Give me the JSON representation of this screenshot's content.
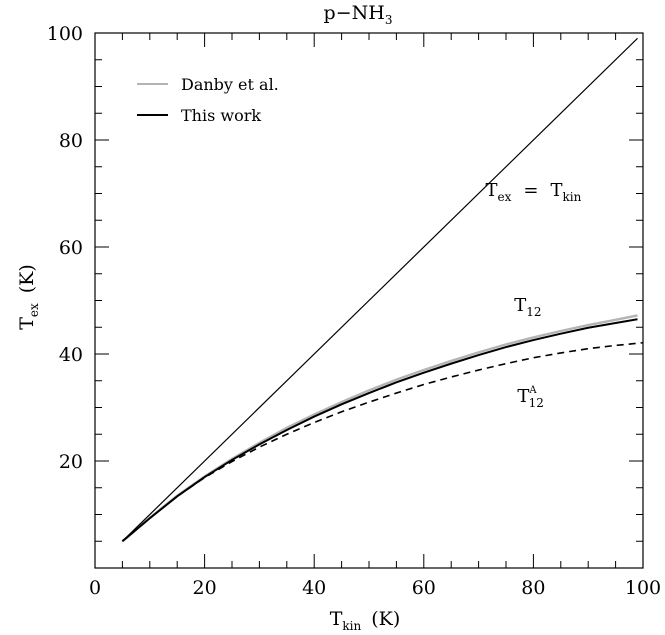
{
  "chart_data": {
    "type": "line",
    "title": "p−NH3",
    "title_main": "p−NH",
    "title_sub": "3",
    "xlabel_main": "T",
    "xlabel_sub": "kin",
    "xlabel_unit": "(K)",
    "ylabel_main": "T",
    "ylabel_sub": "ex",
    "ylabel_unit": "(K)",
    "xlim": [
      0,
      100
    ],
    "ylim": [
      0,
      100
    ],
    "x_ticks": [
      0,
      20,
      40,
      60,
      80,
      100
    ],
    "y_ticks": [
      20,
      40,
      60,
      80,
      100
    ],
    "x_tick_labels": [
      "0",
      "20",
      "40",
      "60",
      "80",
      "100"
    ],
    "y_tick_labels": [
      "20",
      "40",
      "60",
      "80",
      "100"
    ],
    "grid": false,
    "legend_position": "top-left",
    "series": [
      {
        "name": "Danby et al.",
        "color": "#b4b4b4",
        "style": "solid",
        "x": [
          5,
          10,
          15,
          20,
          25,
          30,
          35,
          40,
          45,
          50,
          55,
          60,
          65,
          70,
          75,
          80,
          85,
          90,
          95,
          99
        ],
        "y": [
          5.0,
          9.4,
          13.5,
          17.1,
          20.4,
          23.4,
          26.2,
          28.7,
          31.0,
          33.2,
          35.2,
          37.0,
          38.7,
          40.3,
          41.8,
          43.1,
          44.3,
          45.4,
          46.4,
          47.2
        ]
      },
      {
        "name": "This work",
        "color": "#000000",
        "style": "solid",
        "x": [
          5,
          10,
          15,
          20,
          25,
          30,
          35,
          40,
          45,
          50,
          55,
          60,
          65,
          70,
          75,
          80,
          85,
          90,
          95,
          99
        ],
        "y": [
          5.0,
          9.3,
          13.4,
          17.0,
          20.2,
          23.1,
          25.8,
          28.3,
          30.6,
          32.7,
          34.7,
          36.5,
          38.2,
          39.8,
          41.3,
          42.6,
          43.8,
          44.9,
          45.8,
          46.5
        ]
      },
      {
        "name": "",
        "color": "#000000",
        "style": "dashed",
        "x": [
          5,
          10,
          15,
          20,
          25,
          30,
          35,
          40,
          45,
          50,
          55,
          60,
          65,
          70,
          75,
          80,
          85,
          90,
          95,
          100
        ],
        "y": [
          5.0,
          9.3,
          13.4,
          16.9,
          19.9,
          22.6,
          25.0,
          27.2,
          29.2,
          31.0,
          32.7,
          34.3,
          35.7,
          37.0,
          38.2,
          39.3,
          40.2,
          41.0,
          41.6,
          42.1
        ]
      },
      {
        "name": "",
        "color": "#000000",
        "style": "thin",
        "x": [
          5,
          99
        ],
        "y": [
          5,
          99
        ]
      }
    ],
    "legend": [
      {
        "label": "Danby et al.",
        "color": "#b4b4b4"
      },
      {
        "label": "This work",
        "color": "#000000"
      }
    ],
    "annotations": {
      "tex_eq": {
        "main1": "T",
        "sub1": "ex",
        "eq": "=",
        "main2": "T",
        "sub2": "kin",
        "x": 80,
        "y": 69.5
      },
      "t12": {
        "main": "T",
        "sub": "12",
        "x": 79,
        "y": 48
      },
      "t12a": {
        "main": "T",
        "sub": "12",
        "sup": "A",
        "x": 79.5,
        "y": 31
      }
    }
  }
}
